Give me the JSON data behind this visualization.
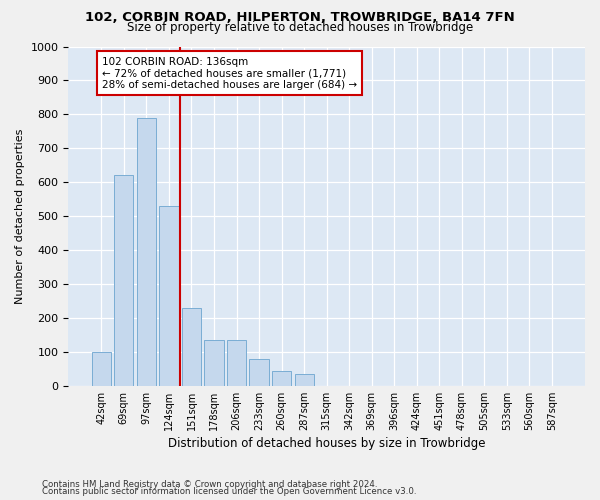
{
  "title1": "102, CORBIN ROAD, HILPERTON, TROWBRIDGE, BA14 7FN",
  "title2": "Size of property relative to detached houses in Trowbridge",
  "xlabel": "Distribution of detached houses by size in Trowbridge",
  "ylabel": "Number of detached properties",
  "bar_color": "#c5d8ed",
  "bar_edge_color": "#7aadd4",
  "bg_color": "#dde8f4",
  "grid_color": "#ffffff",
  "vline_color": "#cc0000",
  "categories": [
    "42sqm",
    "69sqm",
    "97sqm",
    "124sqm",
    "151sqm",
    "178sqm",
    "206sqm",
    "233sqm",
    "260sqm",
    "287sqm",
    "315sqm",
    "342sqm",
    "369sqm",
    "396sqm",
    "424sqm",
    "451sqm",
    "478sqm",
    "505sqm",
    "533sqm",
    "560sqm",
    "587sqm"
  ],
  "values": [
    100,
    620,
    790,
    530,
    230,
    135,
    135,
    80,
    45,
    35,
    0,
    0,
    0,
    0,
    0,
    0,
    0,
    0,
    0,
    0,
    0
  ],
  "vline_bin_index": 3,
  "ann_line1": "102 CORBIN ROAD: 136sqm",
  "ann_line2": "← 72% of detached houses are smaller (1,771)",
  "ann_line3": "28% of semi-detached houses are larger (684) →",
  "footer1": "Contains HM Land Registry data © Crown copyright and database right 2024.",
  "footer2": "Contains public sector information licensed under the Open Government Licence v3.0.",
  "ylim_max": 1000,
  "fig_bg": "#f0f0f0"
}
